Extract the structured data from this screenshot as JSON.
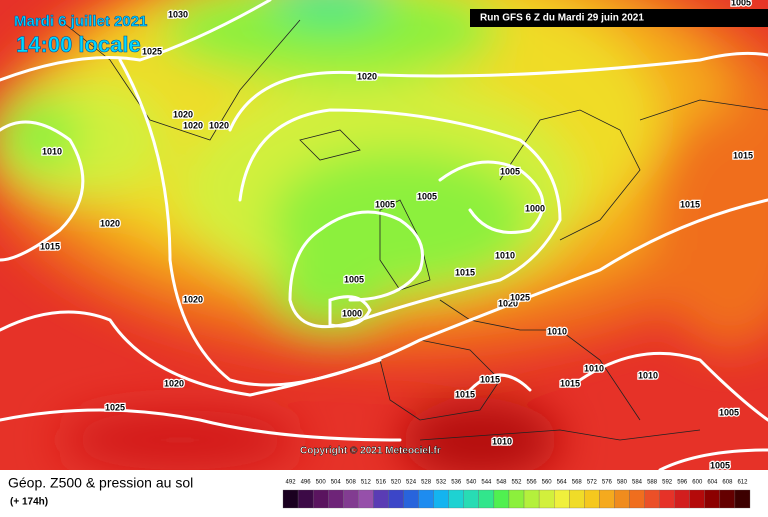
{
  "header": {
    "date": "Mardi 6 juillet 2021",
    "time": "14:00 locale",
    "run": "Run GFS 6 Z du Mardi 29 juin 2021"
  },
  "copyright": "Copyright © 2021 Meteociel.fr",
  "isobar_labels": [
    1030,
    1025,
    1020,
    1020,
    1020,
    1020,
    1010,
    1020,
    1015,
    1020,
    1020,
    1025,
    1005,
    1005,
    1005,
    1000,
    1005,
    1000,
    1010,
    1015,
    1020,
    1025,
    1010,
    1010,
    1015,
    1015,
    1015,
    1010,
    1010,
    1005,
    1005,
    1015,
    1015,
    1005
  ],
  "legend": {
    "title": "Géop. Z500 & pression au sol",
    "subtitle": "(+ 174h)",
    "values": [
      492,
      496,
      500,
      504,
      508,
      512,
      516,
      520,
      524,
      528,
      532,
      536,
      540,
      544,
      548,
      552,
      556,
      560,
      564,
      568,
      572,
      576,
      580,
      584,
      588,
      592,
      596,
      600,
      604,
      608,
      612
    ],
    "colors": [
      "#1a0020",
      "#3c0a46",
      "#5a145f",
      "#6e2478",
      "#823c91",
      "#9650aa",
      "#5a3cb4",
      "#3c46c8",
      "#2864dc",
      "#1e8cf0",
      "#14b4f0",
      "#1ed2d2",
      "#28dcb4",
      "#32e68c",
      "#50f050",
      "#8cf03c",
      "#b4f03c",
      "#d2f03c",
      "#f0f03c",
      "#f0dc28",
      "#f5c81e",
      "#f5aa1e",
      "#f08c1e",
      "#f06e1e",
      "#eb5028",
      "#e63228",
      "#d21e1e",
      "#b40a0a",
      "#8c0000",
      "#640000",
      "#3c0000"
    ]
  }
}
